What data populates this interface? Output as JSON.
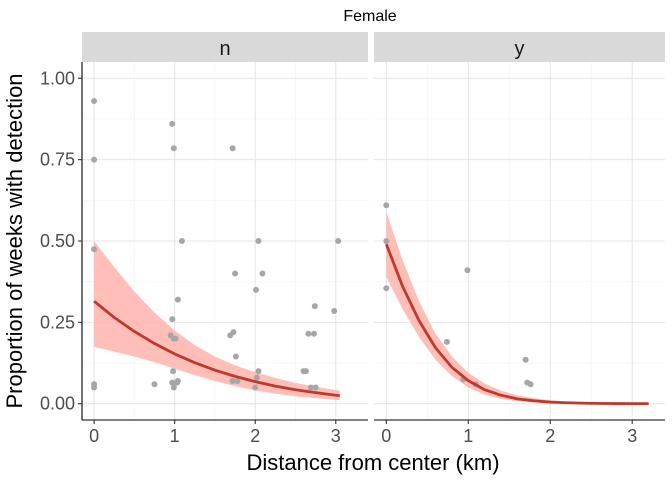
{
  "chart_data": {
    "type": "scatter",
    "title": "Female",
    "xlabel": "Distance from center (km)",
    "ylabel": "Proportion of weeks with detection",
    "xlim": [
      -0.15,
      3.4
    ],
    "ylim": [
      -0.05,
      1.05
    ],
    "x_ticks": [
      0,
      1,
      2,
      3
    ],
    "y_ticks": [
      0,
      0.25,
      0.5,
      0.75,
      1
    ],
    "x_tick_labels": [
      "0",
      "1",
      "2",
      "3"
    ],
    "y_tick_labels": [
      "0.00",
      "0.25",
      "0.50",
      "0.75",
      "1.00"
    ],
    "grid": true,
    "colors": {
      "points": "#a6a6a6",
      "fit_line": "#c0392b",
      "ribbon": "#ffb3ab",
      "strip": "#d9d9d9"
    },
    "facets": [
      {
        "label": "n",
        "points": [
          [
            0.0,
            0.93
          ],
          [
            0.0,
            0.75
          ],
          [
            0.0,
            0.475
          ],
          [
            0.0,
            0.06
          ],
          [
            0.0,
            0.05
          ],
          [
            0.75,
            0.06
          ],
          [
            0.97,
            0.86
          ],
          [
            0.99,
            0.785
          ],
          [
            0.95,
            0.21
          ],
          [
            0.97,
            0.26
          ],
          [
            0.99,
            0.2
          ],
          [
            1.01,
            0.2
          ],
          [
            0.98,
            0.1
          ],
          [
            0.97,
            0.065
          ],
          [
            0.99,
            0.05
          ],
          [
            1.03,
            0.065
          ],
          [
            1.04,
            0.07
          ],
          [
            1.04,
            0.32
          ],
          [
            1.09,
            0.5
          ],
          [
            1.72,
            0.785
          ],
          [
            1.69,
            0.21
          ],
          [
            1.73,
            0.22
          ],
          [
            1.75,
            0.4
          ],
          [
            1.76,
            0.145
          ],
          [
            1.72,
            0.07
          ],
          [
            1.78,
            0.07
          ],
          [
            2.01,
            0.35
          ],
          [
            2.04,
            0.5
          ],
          [
            2.09,
            0.4
          ],
          [
            2.04,
            0.1
          ],
          [
            2.02,
            0.08
          ],
          [
            2.0,
            0.05
          ],
          [
            2.6,
            0.1
          ],
          [
            2.63,
            0.1
          ],
          [
            2.66,
            0.215
          ],
          [
            2.73,
            0.215
          ],
          [
            2.74,
            0.3
          ],
          [
            2.69,
            0.05
          ],
          [
            2.75,
            0.05
          ],
          [
            2.98,
            0.285
          ],
          [
            3.03,
            0.5
          ]
        ],
        "fit": {
          "x": [
            0.0,
            0.25,
            0.5,
            0.75,
            1.0,
            1.25,
            1.5,
            1.75,
            2.0,
            2.25,
            2.5,
            2.75,
            3.0,
            3.05
          ],
          "y": [
            0.315,
            0.265,
            0.222,
            0.185,
            0.153,
            0.126,
            0.103,
            0.084,
            0.068,
            0.054,
            0.043,
            0.034,
            0.026,
            0.025
          ],
          "lower": [
            0.175,
            0.16,
            0.145,
            0.128,
            0.108,
            0.088,
            0.07,
            0.054,
            0.041,
            0.031,
            0.023,
            0.017,
            0.012,
            0.011
          ],
          "upper": [
            0.5,
            0.42,
            0.345,
            0.28,
            0.225,
            0.18,
            0.145,
            0.118,
            0.097,
            0.079,
            0.064,
            0.052,
            0.042,
            0.04
          ]
        }
      },
      {
        "label": "y",
        "points": [
          [
            0.0,
            0.61
          ],
          [
            0.0,
            0.5
          ],
          [
            0.0,
            0.355
          ],
          [
            0.74,
            0.19
          ],
          [
            0.94,
            0.075
          ],
          [
            0.99,
            0.41
          ],
          [
            1.09,
            0.06
          ],
          [
            1.7,
            0.135
          ],
          [
            1.72,
            0.065
          ],
          [
            1.76,
            0.06
          ]
        ],
        "fit": {
          "x": [
            0.0,
            0.2,
            0.4,
            0.6,
            0.8,
            1.0,
            1.2,
            1.4,
            1.6,
            1.8,
            2.0,
            2.2,
            2.5,
            2.8,
            3.2
          ],
          "y": [
            0.49,
            0.36,
            0.255,
            0.172,
            0.112,
            0.071,
            0.043,
            0.026,
            0.015,
            0.009,
            0.005,
            0.003,
            0.001,
            0.0005,
            0.0002
          ],
          "lower": [
            0.39,
            0.29,
            0.205,
            0.135,
            0.085,
            0.05,
            0.028,
            0.015,
            0.008,
            0.004,
            0.002,
            0.001,
            0.0004,
            0.0001,
            0.0
          ],
          "upper": [
            0.59,
            0.44,
            0.315,
            0.215,
            0.145,
            0.095,
            0.062,
            0.04,
            0.026,
            0.017,
            0.011,
            0.007,
            0.003,
            0.0015,
            0.0006
          ]
        }
      }
    ]
  }
}
